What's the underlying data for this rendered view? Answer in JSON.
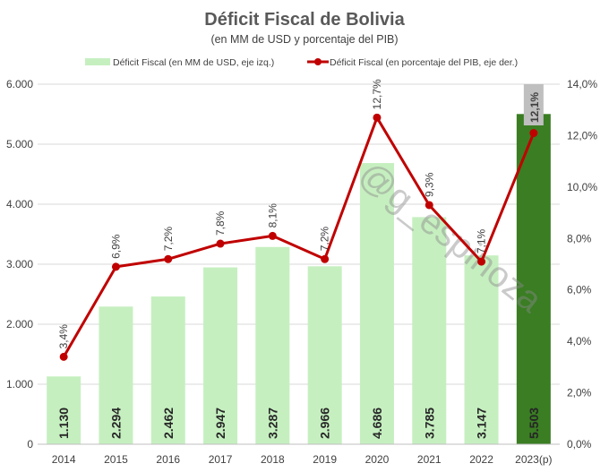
{
  "chart_data": {
    "type": "bar+line",
    "title": "Déficit Fiscal de Bolivia",
    "subtitle": "(en MM de USD y porcentaje del PIB)",
    "categories": [
      "2014",
      "2015",
      "2016",
      "2017",
      "2018",
      "2019",
      "2020",
      "2021",
      "2022",
      "2023(p)"
    ],
    "series": [
      {
        "name": "Déficit Fiscal (en MM de USD, eje izq.)",
        "type": "bar",
        "axis": "left",
        "values": [
          1130,
          2294,
          2462,
          2947,
          3287,
          2966,
          4686,
          3785,
          3147,
          5503
        ],
        "labels": [
          "1.130",
          "2.294",
          "2.462",
          "2.947",
          "3.287",
          "2.966",
          "4.686",
          "3.785",
          "3.147",
          "5.503"
        ],
        "color": "#c6efc0",
        "highlight_color": "#3a7d23"
      },
      {
        "name": "Déficit Fiscal (en porcentaje del PIB, eje der.)",
        "type": "line",
        "axis": "right",
        "values": [
          3.4,
          6.9,
          7.2,
          7.8,
          8.1,
          7.2,
          12.7,
          9.3,
          7.1,
          12.1
        ],
        "labels": [
          "3,4%",
          "6,9%",
          "7,2%",
          "7,8%",
          "8,1%",
          "7,2%",
          "12,7%",
          "9,3%",
          "7,1%",
          "12,1%"
        ],
        "color": "#c00000"
      }
    ],
    "left_axis": {
      "range": [
        0,
        6000
      ],
      "ticks": [
        "0",
        "1.000",
        "2.000",
        "3.000",
        "4.000",
        "5.000",
        "6.000"
      ]
    },
    "right_axis": {
      "range": [
        0,
        14
      ],
      "ticks": [
        "0,0%",
        "2,0%",
        "4,0%",
        "6,0%",
        "8,0%",
        "10,0%",
        "12,0%",
        "14,0%"
      ]
    },
    "grid": true,
    "legend": "top",
    "highlight_label_color": "#e00000",
    "watermark": "@g_espinoza"
  }
}
